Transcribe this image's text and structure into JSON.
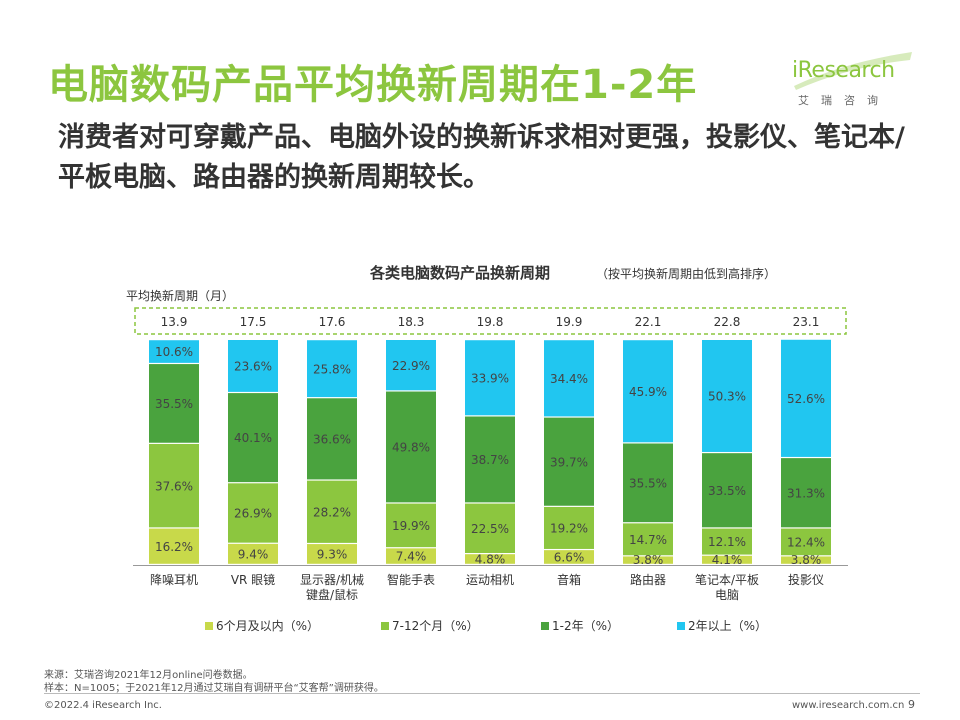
{
  "page": {
    "title": "电脑数码产品平均换新周期在1-2年",
    "subtitle": "消费者对可穿戴产品、电脑外设的换新诉求相对更强，投影仪、笔记本/平板电脑、路由器的换新周期较长。",
    "logo_text": "iResearch",
    "logo_cn": "艾瑞咨询",
    "source": "来源：艾瑞咨询2021年12月online问卷数据。",
    "sample": "样本：N=1005；于2021年12月通过艾瑞自有调研平台“艾客帮”调研获得。",
    "copyright": "©2022.4 iResearch Inc.",
    "website": "www.iresearch.com.cn",
    "page_number": "9"
  },
  "chart_data": {
    "type": "bar",
    "stacked": true,
    "normalized": true,
    "title": "各类电脑数码产品换新周期",
    "subtitle": "（按平均换新周期由低到高排序）",
    "avg_label": "平均换新周期（月）",
    "categories": [
      "降噪耳机",
      "VR 眼镜",
      "显示器/机械键盘/鼠标",
      "智能手表",
      "运动相机",
      "音箱",
      "路由器",
      "笔记本/平板电脑",
      "投影仪"
    ],
    "category_lines": [
      [
        "降噪耳机"
      ],
      [
        "VR 眼镜"
      ],
      [
        "显示器/机械",
        "键盘/鼠标"
      ],
      [
        "智能手表"
      ],
      [
        "运动相机"
      ],
      [
        "音箱"
      ],
      [
        "路由器"
      ],
      [
        "笔记本/平板",
        "电脑"
      ],
      [
        "投影仪"
      ]
    ],
    "avg_months": [
      "13.9",
      "17.5",
      "17.6",
      "18.3",
      "19.8",
      "19.9",
      "22.1",
      "22.8",
      "23.1"
    ],
    "series": [
      {
        "name": "6个月及以内（%）",
        "color": "#c8d94a",
        "values": [
          16.2,
          9.4,
          9.3,
          7.4,
          4.8,
          6.6,
          3.8,
          4.1,
          3.8
        ]
      },
      {
        "name": "7-12个月（%）",
        "color": "#8cc63f",
        "values": [
          37.6,
          26.9,
          28.2,
          19.9,
          22.5,
          19.2,
          14.7,
          12.1,
          12.4
        ]
      },
      {
        "name": "1-2年（%）",
        "color": "#4aa33e",
        "values": [
          35.5,
          40.1,
          36.6,
          49.8,
          38.7,
          39.7,
          35.5,
          33.5,
          31.3
        ]
      },
      {
        "name": "2年以上（%）",
        "color": "#21c6f0",
        "values": [
          10.6,
          23.6,
          25.8,
          22.9,
          33.9,
          34.4,
          45.9,
          50.3,
          52.6
        ]
      }
    ],
    "ylim": [
      0,
      100
    ],
    "legend_position": "bottom"
  }
}
